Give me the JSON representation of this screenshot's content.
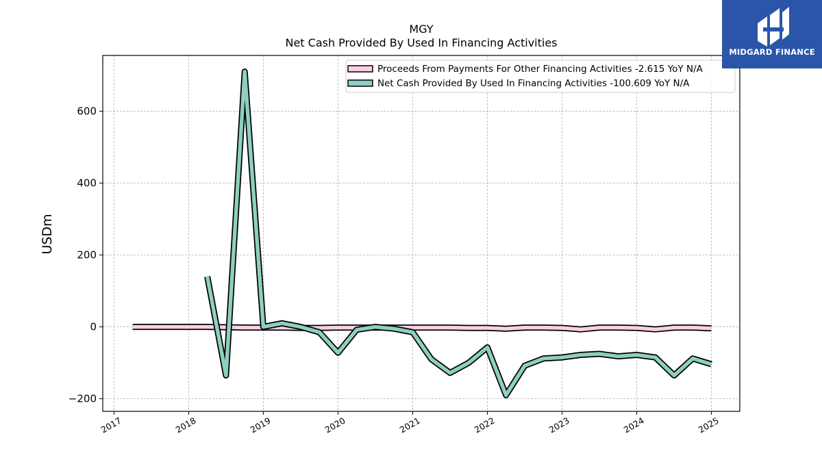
{
  "brand": {
    "name": "MIDGARD FINANCE",
    "color": "#2a55a8"
  },
  "chart_data": {
    "type": "line",
    "title": "MGY",
    "subtitle": "Net Cash Provided By Used In Financing Activities",
    "xlabel": "",
    "ylabel": "USDm",
    "xlim": [
      2016.85,
      2025.38
    ],
    "ylim": [
      -235,
      755
    ],
    "x_ticks": [
      2017,
      2018,
      2019,
      2020,
      2021,
      2022,
      2023,
      2024,
      2025
    ],
    "y_ticks": [
      -200,
      0,
      200,
      400,
      600
    ],
    "y_tick_labels": [
      "−200",
      "0",
      "200",
      "400",
      "600"
    ],
    "grid": true,
    "legend_position": "top-right",
    "series": [
      {
        "name": "Proceeds From Payments For Other Financing Activities  -2.615 YoY N/A",
        "color": "#f9cfe4",
        "x": [
          2017.25,
          2017.5,
          2017.75,
          2018.0,
          2018.25,
          2018.5,
          2018.75,
          2019.0,
          2019.25,
          2019.5,
          2019.75,
          2020.0,
          2020.25,
          2020.5,
          2020.75,
          2021.0,
          2021.25,
          2021.5,
          2021.75,
          2022.0,
          2022.25,
          2022.5,
          2022.75,
          2023.0,
          2023.25,
          2023.5,
          2023.75,
          2024.0,
          2024.25,
          2024.5,
          2024.75,
          2025.0
        ],
        "y": [
          0,
          0,
          0,
          0,
          0,
          -1,
          -2,
          -2,
          -2,
          -3,
          -3,
          -2,
          -2,
          -2,
          -2,
          -2,
          -2,
          -2,
          -3,
          -3,
          -5,
          -2,
          -2,
          -3,
          -7,
          -2,
          -2,
          -3,
          -7,
          -2,
          -2,
          -4
        ]
      },
      {
        "name": "Net Cash Provided By Used In Financing Activities  -100.609 YoY N/A",
        "color": "#8ccfc0",
        "x": [
          2018.25,
          2018.5,
          2018.75,
          2019.0,
          2019.25,
          2019.5,
          2019.75,
          2020.0,
          2020.25,
          2020.5,
          2020.75,
          2021.0,
          2021.25,
          2021.5,
          2021.75,
          2022.0,
          2022.25,
          2022.5,
          2022.75,
          2023.0,
          2023.25,
          2023.5,
          2023.75,
          2024.0,
          2024.25,
          2024.5,
          2024.75,
          2025.0
        ],
        "y": [
          140,
          -135,
          710,
          0,
          10,
          0,
          -15,
          -72,
          -8,
          0,
          -5,
          -15,
          -90,
          -128,
          -100,
          -57,
          -190,
          -108,
          -88,
          -85,
          -78,
          -75,
          -82,
          -78,
          -85,
          -135,
          -88,
          -104
        ]
      }
    ]
  }
}
